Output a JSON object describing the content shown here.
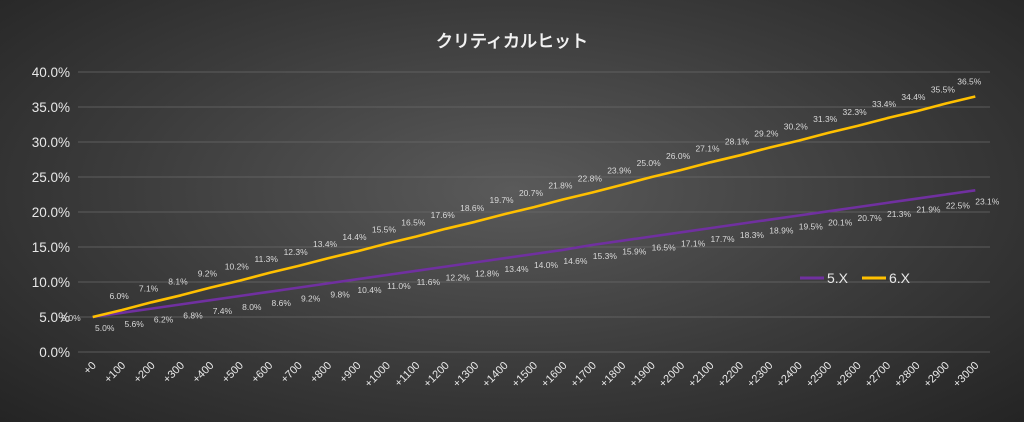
{
  "chart_data": {
    "type": "line",
    "title": "クリティカルヒット",
    "categories": [
      "+0",
      "+100",
      "+200",
      "+300",
      "+400",
      "+500",
      "+600",
      "+700",
      "+800",
      "+900",
      "+1000",
      "+1100",
      "+1200",
      "+1300",
      "+1400",
      "+1500",
      "+1600",
      "+1700",
      "+1800",
      "+1900",
      "+2000",
      "+2100",
      "+2200",
      "+2300",
      "+2400",
      "+2500",
      "+2600",
      "+2700",
      "+2800",
      "+2900",
      "+3000"
    ],
    "ylim": [
      0,
      40
    ],
    "yticks": [
      "0.0%",
      "5.0%",
      "10.0%",
      "15.0%",
      "20.0%",
      "25.0%",
      "30.0%",
      "35.0%",
      "40.0%"
    ],
    "grid": true,
    "legend_position": "right",
    "series": [
      {
        "name": "5.X",
        "color": "#7030a0",
        "values": [
          5.0,
          5.6,
          6.2,
          6.8,
          7.4,
          8.0,
          8.6,
          9.2,
          9.8,
          10.4,
          11.0,
          11.6,
          12.2,
          12.8,
          13.4,
          14.0,
          14.6,
          15.3,
          15.9,
          16.5,
          17.1,
          17.7,
          18.3,
          18.9,
          19.5,
          20.1,
          20.7,
          21.3,
          21.9,
          22.5,
          23.1
        ],
        "labels": [
          "5.0%",
          "5.6%",
          "6.2%",
          "6.8%",
          "7.4%",
          "8.0%",
          "8.6%",
          "9.2%",
          "9.8%",
          "10.4%",
          "11.0%",
          "11.6%",
          "12.2%",
          "12.8%",
          "13.4%",
          "14.0%",
          "14.6%",
          "15.3%",
          "15.9%",
          "16.5%",
          "17.1%",
          "17.7%",
          "18.3%",
          "18.9%",
          "19.5%",
          "20.1%",
          "20.7%",
          "21.3%",
          "21.9%",
          "22.5%",
          "23.1%"
        ]
      },
      {
        "name": "6.X",
        "color": "#ffc000",
        "values": [
          5.0,
          6.0,
          7.1,
          8.1,
          9.2,
          10.2,
          11.3,
          12.3,
          13.4,
          14.4,
          15.5,
          16.5,
          17.6,
          18.6,
          19.7,
          20.7,
          21.8,
          22.8,
          23.9,
          25.0,
          26.0,
          27.1,
          28.1,
          29.2,
          30.2,
          31.3,
          32.3,
          33.4,
          34.4,
          35.5,
          36.5
        ],
        "labels": [
          "5.0%",
          "6.0%",
          "7.1%",
          "8.1%",
          "9.2%",
          "10.2%",
          "11.3%",
          "12.3%",
          "13.4%",
          "14.4%",
          "15.5%",
          "16.5%",
          "17.6%",
          "18.6%",
          "19.7%",
          "20.7%",
          "21.8%",
          "22.8%",
          "23.9%",
          "25.0%",
          "26.0%",
          "27.1%",
          "28.1%",
          "29.2%",
          "30.2%",
          "31.3%",
          "32.3%",
          "33.4%",
          "34.4%",
          "35.5%",
          "36.5%"
        ]
      }
    ]
  }
}
